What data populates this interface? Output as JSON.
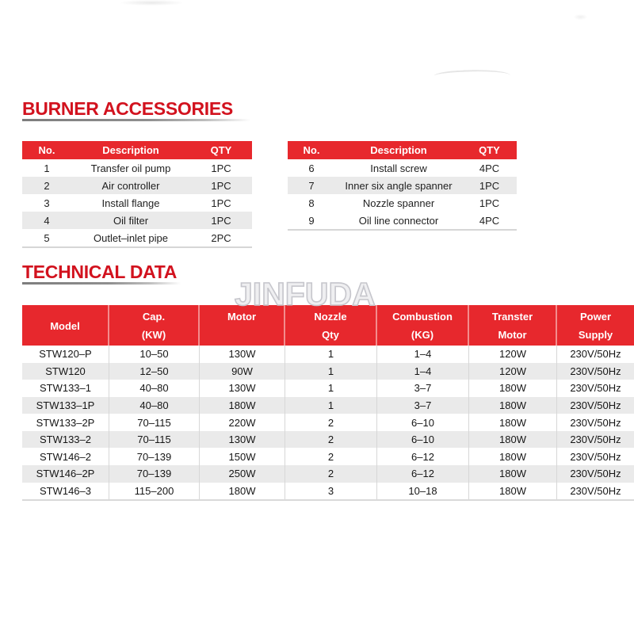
{
  "colors": {
    "heading_red": "#d2121e",
    "table_header_bg": "#e7282d",
    "row_alt_gray": "#eaeaea",
    "watermark_gray": "#c6c6cc"
  },
  "burner_section": {
    "title": "BURNER ACCESSORIES"
  },
  "accessories_tables": [
    {
      "headers": [
        "No.",
        "Description",
        "QTY"
      ],
      "rows": [
        [
          "1",
          "Transfer oil pump",
          "1PC"
        ],
        [
          "2",
          "Air controller",
          "1PC"
        ],
        [
          "3",
          "Install flange",
          "1PC"
        ],
        [
          "4",
          "Oil filter",
          "1PC"
        ],
        [
          "5",
          "Outlet–inlet pipe",
          "2PC"
        ]
      ]
    },
    {
      "headers": [
        "No.",
        "Description",
        "QTY"
      ],
      "rows": [
        [
          "6",
          "Install screw",
          "4PC"
        ],
        [
          "7",
          "Inner six angle spanner",
          "1PC"
        ],
        [
          "8",
          "Nozzle spanner",
          "1PC"
        ],
        [
          "9",
          "Oil line connector",
          "4PC"
        ]
      ]
    }
  ],
  "technical_section": {
    "title": "TECHNICAL DATA",
    "watermark": "JINFUDA"
  },
  "technical_table": {
    "header": [
      {
        "l1": "Model",
        "l2": "",
        "va": "center"
      },
      {
        "l1": "Cap.",
        "l2": "(KW)",
        "va": "between"
      },
      {
        "l1": "Motor",
        "l2": "",
        "va": "top"
      },
      {
        "l1": "Nozzle",
        "l2": "Qty",
        "va": "between"
      },
      {
        "l1": "Combustion",
        "l2": "(KG)",
        "va": "between"
      },
      {
        "l1": "Transter",
        "l2": "Motor",
        "va": "between"
      },
      {
        "l1": "Power",
        "l2": "Supply",
        "va": "between"
      }
    ],
    "rows": [
      [
        "STW120–P",
        "10–50",
        "130W",
        "1",
        "1–4",
        "120W",
        "230V/50Hz"
      ],
      [
        "STW120",
        "12–50",
        "90W",
        "1",
        "1–4",
        "120W",
        "230V/50Hz"
      ],
      [
        "STW133–1",
        "40–80",
        "130W",
        "1",
        "3–7",
        "180W",
        "230V/50Hz"
      ],
      [
        "STW133–1P",
        "40–80",
        "180W",
        "1",
        "3–7",
        "180W",
        "230V/50Hz"
      ],
      [
        "STW133–2P",
        "70–115",
        "220W",
        "2",
        "6–10",
        "180W",
        "230V/50Hz"
      ],
      [
        "STW133–2",
        "70–115",
        "130W",
        "2",
        "6–10",
        "180W",
        "230V/50Hz"
      ],
      [
        "STW146–2",
        "70–139",
        "150W",
        "2",
        "6–12",
        "180W",
        "230V/50Hz"
      ],
      [
        "STW146–2P",
        "70–139",
        "250W",
        "2",
        "6–12",
        "180W",
        "230V/50Hz"
      ],
      [
        "STW146–3",
        "115–200",
        "180W",
        "3",
        "10–18",
        "180W",
        "230V/50Hz"
      ]
    ]
  }
}
